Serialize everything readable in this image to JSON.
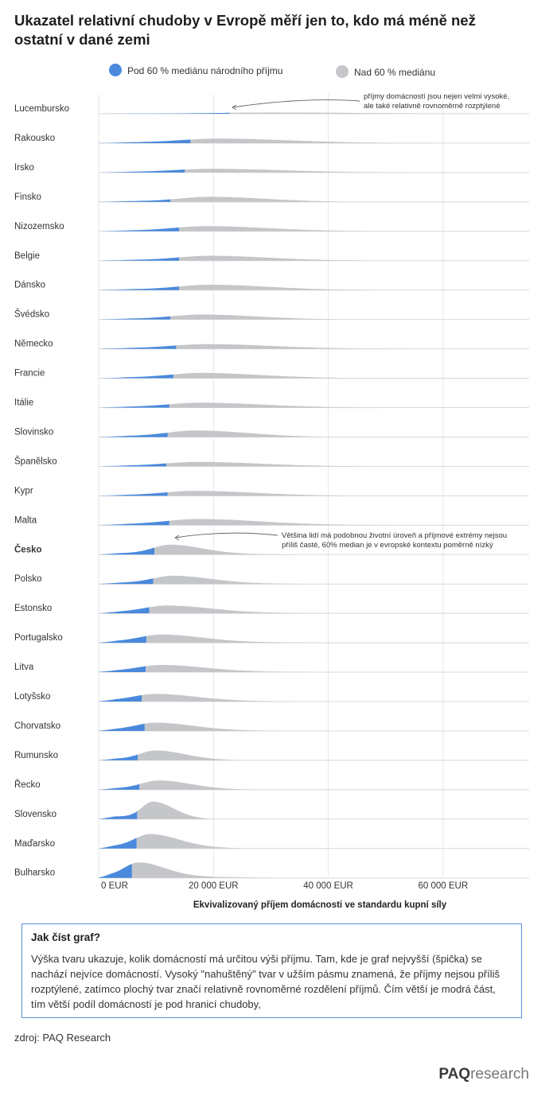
{
  "title": "Ukazatel relativní chudoby v Evropě měří jen to, kdo má méně než ostatní v dané zemi",
  "colors": {
    "below": "#4a89dc",
    "above": "#c4c6c9",
    "accent_border": "#5b8fd6"
  },
  "chart_data": {
    "type": "ridgeline",
    "legend": [
      {
        "label": "Pod 60 % mediánu národního příjmu",
        "color": "#4a89dc"
      },
      {
        "label": "Nad 60 % mediánu",
        "color": "#c4c6c9"
      }
    ],
    "xlabel": "Ekvivalizovaný příjem domácnosti ve standardu kupní síly",
    "xlim": [
      0,
      75000
    ],
    "xticks": [
      {
        "value": 0,
        "label": "0  EUR"
      },
      {
        "value": 20000,
        "label": "20 000 EUR"
      },
      {
        "value": 40000,
        "label": "40 000 EUR"
      },
      {
        "value": 60000,
        "label": "60 000 EUR"
      }
    ],
    "highlight": "Česko",
    "countries": [
      {
        "name": "Lucembursko",
        "threshold": 22800,
        "peak": 30000,
        "width": 16000,
        "max_income": 75000,
        "height": 0.06
      },
      {
        "name": "Rakousko",
        "threshold": 16000,
        "peak": 21000,
        "width": 12000,
        "max_income": 59000,
        "height": 0.22
      },
      {
        "name": "Irsko",
        "threshold": 15000,
        "peak": 20000,
        "width": 12000,
        "max_income": 54000,
        "height": 0.18
      },
      {
        "name": "Finsko",
        "threshold": 12500,
        "peak": 19500,
        "width": 9500,
        "max_income": 44000,
        "height": 0.25
      },
      {
        "name": "Nizozemsko",
        "threshold": 14000,
        "peak": 19000,
        "width": 10500,
        "max_income": 49000,
        "height": 0.25
      },
      {
        "name": "Belgie",
        "threshold": 14000,
        "peak": 19500,
        "width": 10000,
        "max_income": 48000,
        "height": 0.24
      },
      {
        "name": "Dánsko",
        "threshold": 14000,
        "peak": 19500,
        "width": 10000,
        "max_income": 49000,
        "height": 0.26
      },
      {
        "name": "Švédsko",
        "threshold": 12500,
        "peak": 18000,
        "width": 9500,
        "max_income": 41000,
        "height": 0.24
      },
      {
        "name": "Německo",
        "threshold": 13500,
        "peak": 19000,
        "width": 11000,
        "max_income": 54000,
        "height": 0.23
      },
      {
        "name": "Francie",
        "threshold": 13000,
        "peak": 18000,
        "width": 10000,
        "max_income": 49000,
        "height": 0.26
      },
      {
        "name": "Itálie",
        "threshold": 12300,
        "peak": 18000,
        "width": 10500,
        "max_income": 50000,
        "height": 0.24
      },
      {
        "name": "Slovinsko",
        "threshold": 12000,
        "peak": 17000,
        "width": 9000,
        "max_income": 39000,
        "height": 0.32
      },
      {
        "name": "Španělsko",
        "threshold": 11800,
        "peak": 17500,
        "width": 10500,
        "max_income": 47000,
        "height": 0.22
      },
      {
        "name": "Kypr",
        "threshold": 12000,
        "peak": 17000,
        "width": 10000,
        "max_income": 48000,
        "height": 0.24
      },
      {
        "name": "Malta",
        "threshold": 12300,
        "peak": 17500,
        "width": 10500,
        "max_income": 55000,
        "height": 0.3
      },
      {
        "name": "Česko",
        "threshold": 9700,
        "peak": 12500,
        "width": 5500,
        "max_income": 35000,
        "height": 0.48
      },
      {
        "name": "Polsko",
        "threshold": 9500,
        "peak": 13000,
        "width": 6500,
        "max_income": 37000,
        "height": 0.4
      },
      {
        "name": "Estonsko",
        "threshold": 8800,
        "peak": 12000,
        "width": 7500,
        "max_income": 42000,
        "height": 0.38
      },
      {
        "name": "Portugalsko",
        "threshold": 8300,
        "peak": 11000,
        "width": 7000,
        "max_income": 41000,
        "height": 0.4
      },
      {
        "name": "Litva",
        "threshold": 8200,
        "peak": 11000,
        "width": 7500,
        "max_income": 40000,
        "height": 0.35
      },
      {
        "name": "Lotyšsko",
        "threshold": 7500,
        "peak": 10000,
        "width": 7000,
        "max_income": 36000,
        "height": 0.37
      },
      {
        "name": "Chorvatsko",
        "threshold": 8000,
        "peak": 10000,
        "width": 6500,
        "max_income": 32000,
        "height": 0.4
      },
      {
        "name": "Rumunsko",
        "threshold": 6800,
        "peak": 10000,
        "width": 5000,
        "max_income": 25500,
        "height": 0.48
      },
      {
        "name": "Řecko",
        "threshold": 7100,
        "peak": 10500,
        "width": 5500,
        "max_income": 27500,
        "height": 0.45
      },
      {
        "name": "Slovensko",
        "threshold": 6700,
        "peak": 9500,
        "width": 3500,
        "max_income": 19500,
        "height": 0.85
      },
      {
        "name": "Maďarsko",
        "threshold": 6600,
        "peak": 9000,
        "width": 5000,
        "max_income": 26000,
        "height": 0.7
      },
      {
        "name": "Bulharsko",
        "threshold": 5800,
        "peak": 7000,
        "width": 4500,
        "max_income": 30000,
        "height": 0.75
      }
    ],
    "annotations": [
      {
        "country": "Lucembursko",
        "lines": [
          "příjmy domácností jsou nejen velmi vysoké,",
          "ale také relativně rovnoměrně rozptýlené"
        ]
      },
      {
        "country": "Česko",
        "lines": [
          "Většina lidí má podobnou životní úroveň a příjmové extrémy nejsou",
          "příliš časté, 60% median je v evropské kontextu poměrně nízký"
        ]
      }
    ]
  },
  "info": {
    "title": "Jak číst graf?",
    "text": "Výška tvaru ukazuje, kolik domácností má určitou výši příjmu. Tam, kde je graf nejvyšší (špička) se nachází nejvíce domácností. Vysoký \"nahuštěný\" tvar v užším pásmu znamená, že příjmy nejsou příliš rozptýlené, zatímco plochý tvar značí relativně rovnoměrné rozdělení příjmů. Čím větší je modrá část, tím větší podíl domácností je pod hranicí chudoby,"
  },
  "source": "zdroj: PAQ Research",
  "logo": {
    "strong": "PAQ",
    "light": "research"
  }
}
